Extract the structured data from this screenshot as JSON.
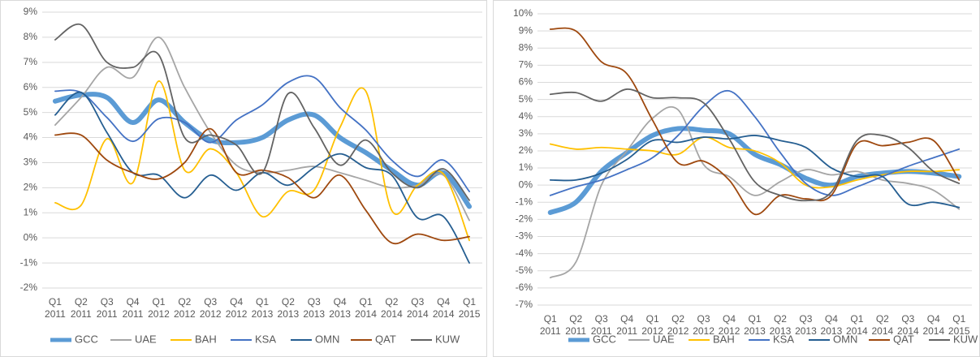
{
  "chart_data": [
    {
      "type": "line",
      "categories": [
        "Q1 2011",
        "Q2 2011",
        "Q3 2011",
        "Q4 2011",
        "Q1 2012",
        "Q2 2012",
        "Q3 2012",
        "Q4 2012",
        "Q1 2013",
        "Q2 2013",
        "Q3 2013",
        "Q4 2013",
        "Q1 2014",
        "Q2 2014",
        "Q3 2014",
        "Q4 2014",
        "Q1 2015"
      ],
      "ylim": [
        -2,
        9
      ],
      "yticks": [
        {
          "value": -2,
          "label": "-2%"
        },
        {
          "value": -1,
          "label": "-1%"
        },
        {
          "value": 0,
          "label": "0%"
        },
        {
          "value": 1,
          "label": "1%"
        },
        {
          "value": 2,
          "label": "2%"
        },
        {
          "value": 3,
          "label": "3%"
        },
        {
          "value": 4,
          "label": "4%"
        },
        {
          "value": 5,
          "label": "5%"
        },
        {
          "value": 6,
          "label": "6%"
        },
        {
          "value": 7,
          "label": "7%"
        },
        {
          "value": 8,
          "label": "8%"
        },
        {
          "value": 9,
          "label": "9%"
        }
      ],
      "grid": true,
      "legend": "bottom",
      "series": [
        {
          "name": "GCC",
          "color": "#5b9bd5",
          "values": [
            5.45,
            5.7,
            5.6,
            4.6,
            5.5,
            4.6,
            3.9,
            3.8,
            4.0,
            4.7,
            4.9,
            4.0,
            3.4,
            2.7,
            2.1,
            2.6,
            1.25
          ]
        },
        {
          "name": "UAE",
          "color": "#a5a5a5",
          "values": [
            4.5,
            5.6,
            6.8,
            6.4,
            8.0,
            6.0,
            4.2,
            2.9,
            2.6,
            2.7,
            2.85,
            2.6,
            2.3,
            2.0,
            2.1,
            2.5,
            0.7
          ]
        },
        {
          "name": "BAH",
          "color": "#ffc000",
          "values": [
            1.4,
            1.3,
            3.95,
            2.2,
            6.25,
            2.7,
            3.55,
            2.6,
            0.85,
            1.85,
            1.9,
            4.4,
            5.85,
            1.1,
            2.1,
            2.55,
            -0.1
          ]
        },
        {
          "name": "KSA",
          "color": "#4472c4",
          "values": [
            5.85,
            5.8,
            4.8,
            3.85,
            4.75,
            4.6,
            3.8,
            4.7,
            5.3,
            6.2,
            6.4,
            5.2,
            4.3,
            3.1,
            2.45,
            3.1,
            1.85
          ]
        },
        {
          "name": "OMN",
          "color": "#255e91",
          "values": [
            4.9,
            5.8,
            4.2,
            2.6,
            2.5,
            1.6,
            2.5,
            1.9,
            2.6,
            2.1,
            2.8,
            3.35,
            2.8,
            2.5,
            0.8,
            0.85,
            -1.0
          ]
        },
        {
          "name": "QAT",
          "color": "#9e480e",
          "values": [
            4.1,
            4.1,
            3.1,
            2.6,
            2.35,
            3.0,
            4.35,
            2.6,
            2.7,
            2.4,
            1.6,
            2.5,
            1.1,
            -0.2,
            0.15,
            -0.1,
            0.05
          ]
        },
        {
          "name": "KUW",
          "color": "#636363",
          "values": [
            7.9,
            8.5,
            7.0,
            6.8,
            7.3,
            4.0,
            4.1,
            3.7,
            2.6,
            5.75,
            4.4,
            2.9,
            3.9,
            2.6,
            2.0,
            2.75,
            1.5
          ]
        }
      ]
    },
    {
      "type": "line",
      "categories": [
        "Q1 2011",
        "Q2 2011",
        "Q3 2011",
        "Q4 2011",
        "Q1 2012",
        "Q2 2012",
        "Q3 2012",
        "Q4 2012",
        "Q1 2013",
        "Q2 2013",
        "Q3 2013",
        "Q4 2013",
        "Q1 2014",
        "Q2 2014",
        "Q3 2014",
        "Q4 2014",
        "Q1 2015"
      ],
      "ylim": [
        -7,
        10
      ],
      "yticks": [
        {
          "value": -7,
          "label": "-7%"
        },
        {
          "value": -6,
          "label": "-6%"
        },
        {
          "value": -5,
          "label": "-5%"
        },
        {
          "value": -4,
          "label": "-4%"
        },
        {
          "value": -3,
          "label": "-3%"
        },
        {
          "value": -2,
          "label": "-2%"
        },
        {
          "value": -1,
          "label": "-1%"
        },
        {
          "value": 0,
          "label": "0%"
        },
        {
          "value": 1,
          "label": "1%"
        },
        {
          "value": 2,
          "label": "2%"
        },
        {
          "value": 3,
          "label": "3%"
        },
        {
          "value": 4,
          "label": "4%"
        },
        {
          "value": 5,
          "label": "5%"
        },
        {
          "value": 6,
          "label": "6%"
        },
        {
          "value": 7,
          "label": "7%"
        },
        {
          "value": 8,
          "label": "8%"
        },
        {
          "value": 9,
          "label": "9%"
        },
        {
          "value": 10,
          "label": "10%"
        }
      ],
      "grid": true,
      "legend": "bottom",
      "series": [
        {
          "name": "GCC",
          "color": "#5b9bd5",
          "values": [
            -1.6,
            -1.0,
            0.8,
            1.9,
            2.9,
            3.3,
            3.2,
            3.0,
            1.8,
            1.2,
            0.4,
            0.0,
            0.5,
            0.7,
            0.8,
            0.7,
            0.5
          ]
        },
        {
          "name": "UAE",
          "color": "#a5a5a5",
          "values": [
            -5.4,
            -4.5,
            0.0,
            2.0,
            3.9,
            4.4,
            1.2,
            0.5,
            -0.6,
            0.2,
            0.9,
            0.6,
            0.8,
            0.3,
            0.1,
            -0.3,
            -1.4
          ]
        },
        {
          "name": "BAH",
          "color": "#ffc000",
          "values": [
            2.4,
            2.1,
            2.2,
            2.1,
            2.0,
            1.8,
            2.8,
            2.2,
            2.0,
            1.3,
            0.0,
            -0.1,
            0.3,
            0.6,
            0.8,
            0.8,
            0.9
          ]
        },
        {
          "name": "KSA",
          "color": "#4472c4",
          "values": [
            -0.6,
            -0.1,
            0.3,
            0.9,
            1.6,
            2.9,
            4.6,
            5.5,
            4.0,
            1.9,
            0.1,
            -0.6,
            -0.1,
            0.5,
            1.1,
            1.6,
            2.1
          ]
        },
        {
          "name": "OMN",
          "color": "#255e91",
          "values": [
            0.3,
            0.3,
            0.7,
            1.5,
            2.6,
            2.5,
            2.8,
            2.7,
            2.9,
            2.6,
            2.2,
            1.0,
            0.5,
            0.5,
            -1.1,
            -1.0,
            -1.3
          ]
        },
        {
          "name": "QAT",
          "color": "#9e480e",
          "values": [
            9.1,
            9.0,
            7.2,
            6.5,
            3.8,
            1.3,
            1.4,
            0.3,
            -1.7,
            -0.6,
            -0.8,
            -0.6,
            2.4,
            2.3,
            2.5,
            2.6,
            0.3
          ]
        },
        {
          "name": "KUW",
          "color": "#636363",
          "values": [
            5.3,
            5.4,
            4.9,
            5.6,
            5.1,
            5.1,
            4.8,
            2.7,
            0.2,
            -0.6,
            -0.9,
            -0.4,
            2.6,
            2.9,
            2.2,
            0.8,
            0.1
          ]
        }
      ]
    }
  ]
}
